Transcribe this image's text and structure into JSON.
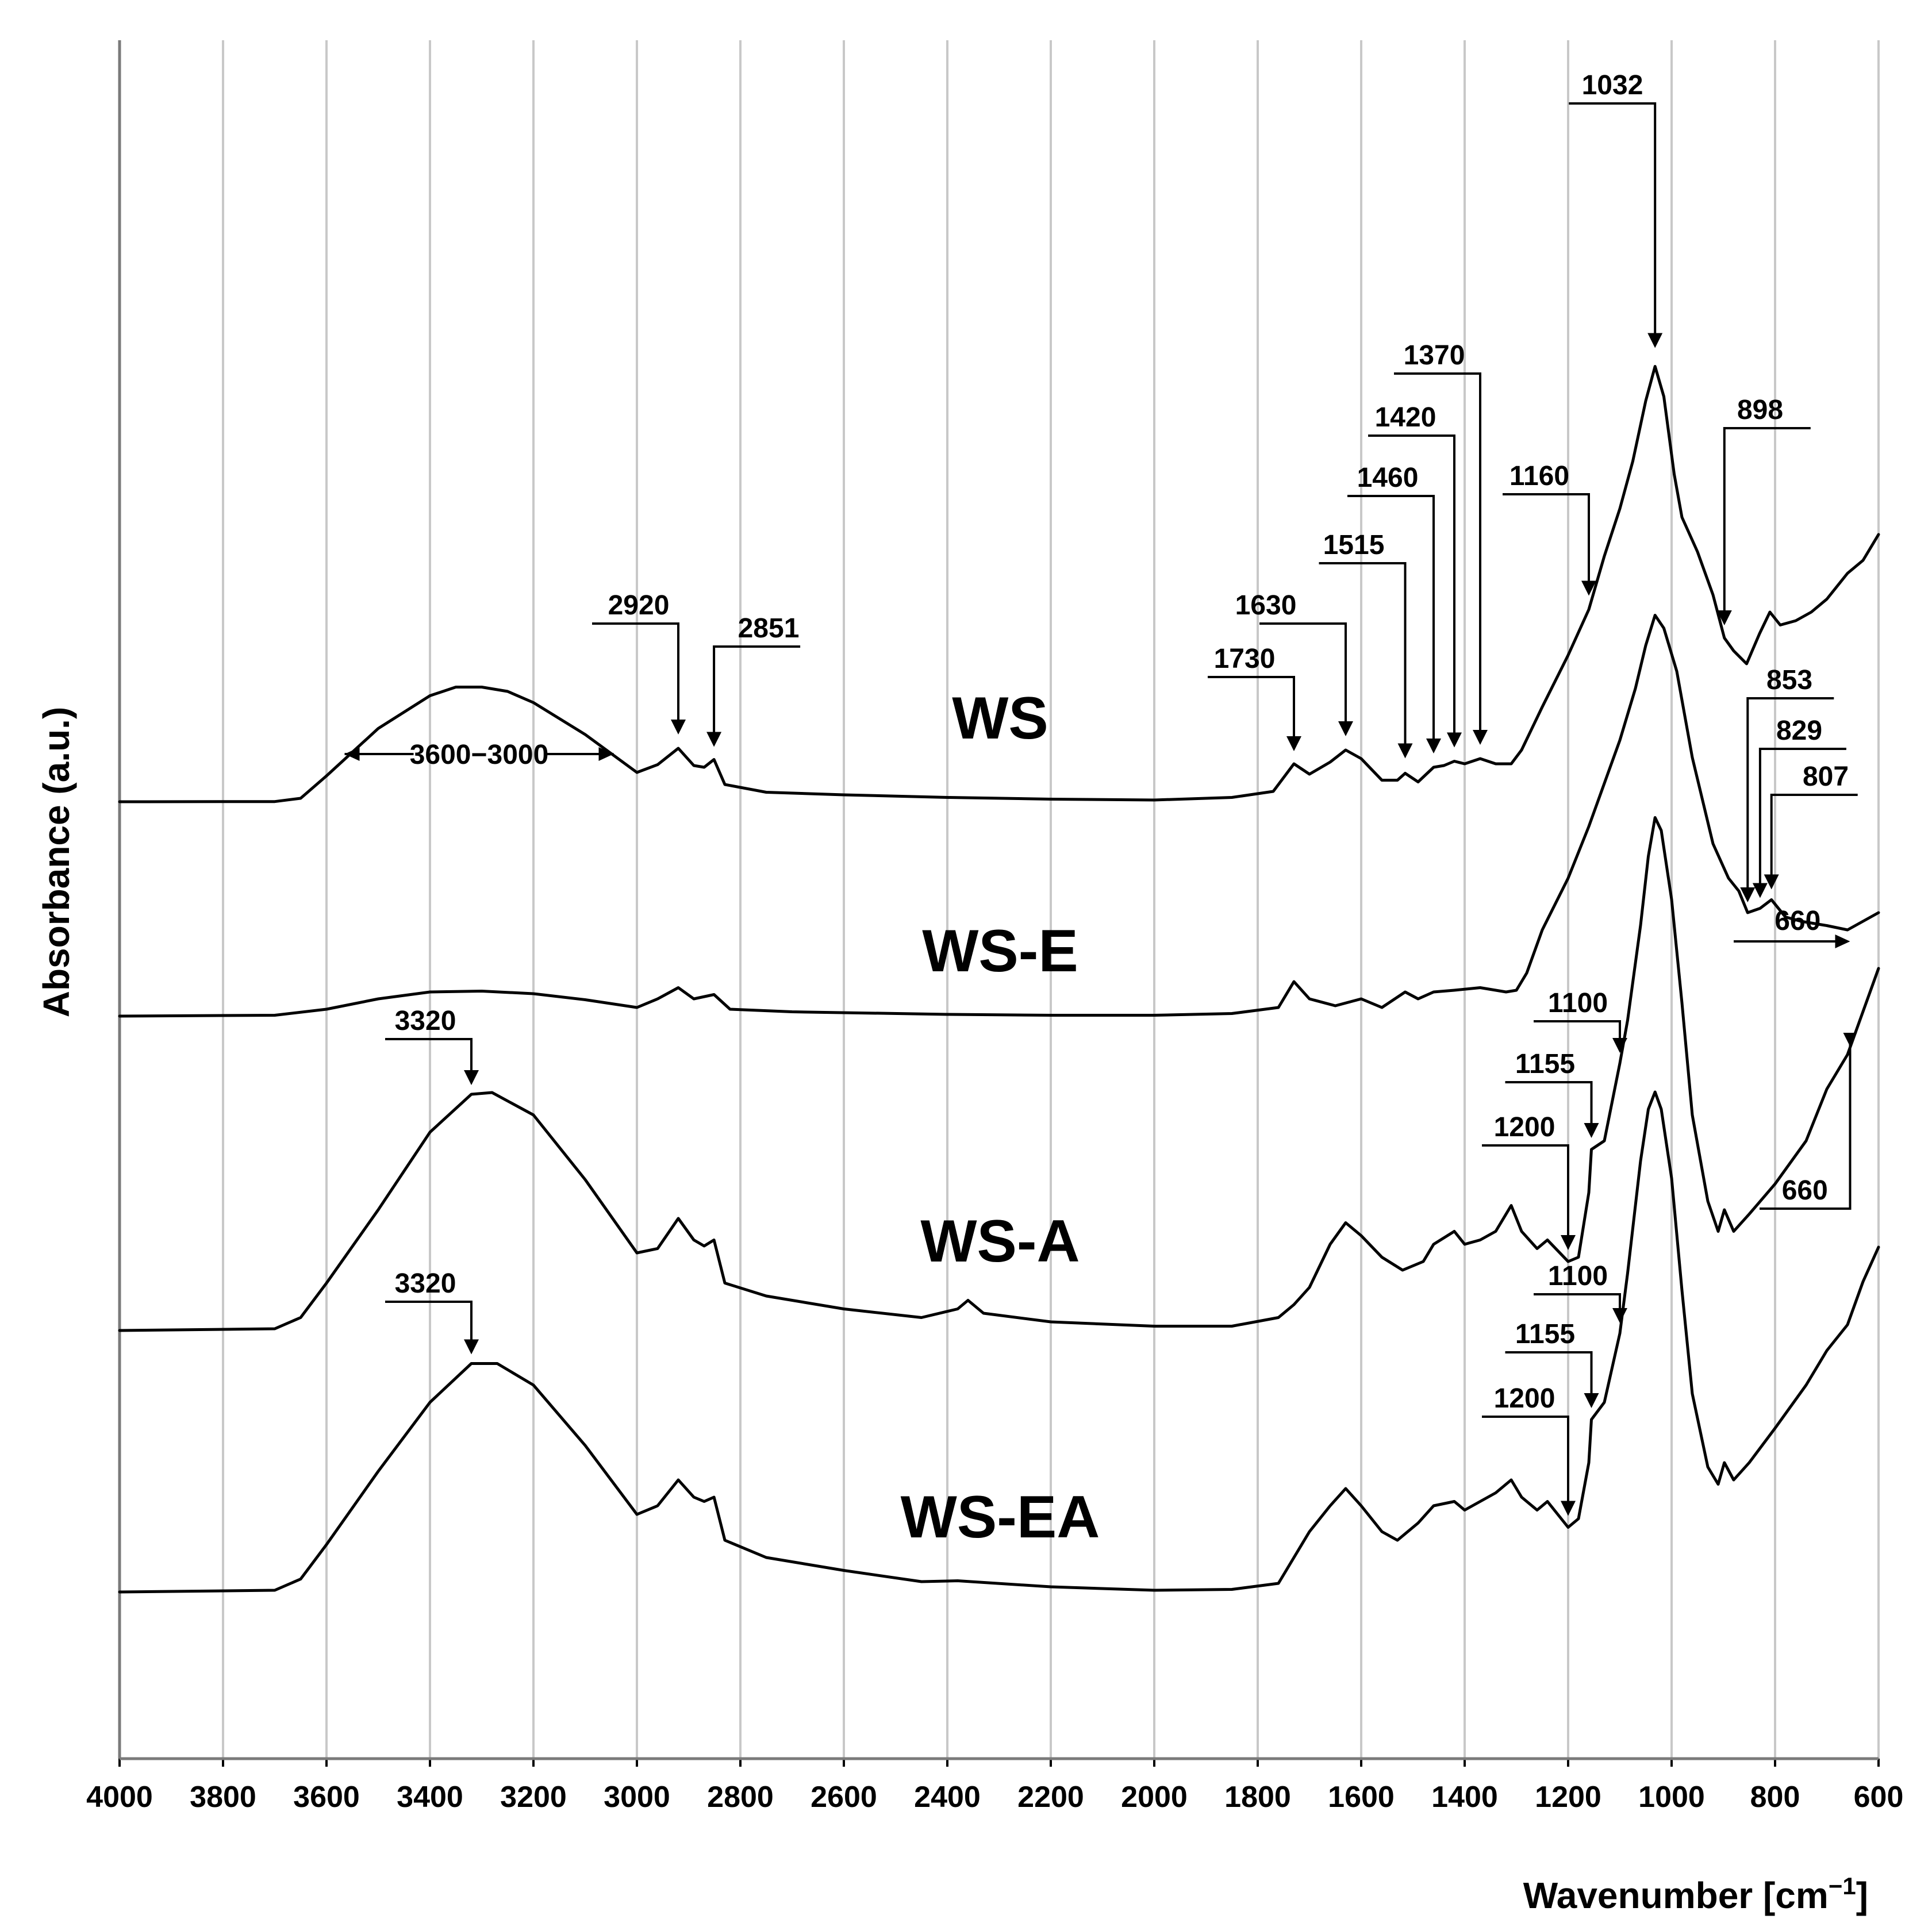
{
  "chart_data": {
    "type": "line",
    "title": "",
    "xlabel": "Wavenumber [cm",
    "xlabel_sup": "−1",
    "xlabel_close": "]",
    "ylabel": "Absorbance (a.u.)",
    "xlim": [
      4000,
      600
    ],
    "x_ticks": [
      4000,
      3800,
      3600,
      3400,
      3200,
      3000,
      2800,
      2600,
      2400,
      2200,
      2000,
      1800,
      1600,
      1400,
      1200,
      1000,
      800,
      600
    ],
    "grid": true,
    "series": [
      {
        "name": "WS",
        "points": [
          [
            4000,
            0.0
          ],
          [
            3700,
            0.002
          ],
          [
            3650,
            0.04
          ],
          [
            3600,
            0.3
          ],
          [
            3500,
            0.85
          ],
          [
            3400,
            1.23
          ],
          [
            3350,
            1.33
          ],
          [
            3300,
            1.33
          ],
          [
            3250,
            1.28
          ],
          [
            3200,
            1.15
          ],
          [
            3100,
            0.78
          ],
          [
            3050,
            0.56
          ],
          [
            3000,
            0.34
          ],
          [
            2960,
            0.43
          ],
          [
            2920,
            0.62
          ],
          [
            2890,
            0.42
          ],
          [
            2870,
            0.4
          ],
          [
            2851,
            0.49
          ],
          [
            2830,
            0.2
          ],
          [
            2750,
            0.11
          ],
          [
            2600,
            0.08
          ],
          [
            2400,
            0.05
          ],
          [
            2200,
            0.03
          ],
          [
            2000,
            0.02
          ],
          [
            1850,
            0.05
          ],
          [
            1770,
            0.12
          ],
          [
            1730,
            0.44
          ],
          [
            1700,
            0.32
          ],
          [
            1660,
            0.46
          ],
          [
            1630,
            0.6
          ],
          [
            1600,
            0.5
          ],
          [
            1560,
            0.25
          ],
          [
            1530,
            0.25
          ],
          [
            1515,
            0.33
          ],
          [
            1490,
            0.23
          ],
          [
            1460,
            0.4
          ],
          [
            1440,
            0.42
          ],
          [
            1420,
            0.47
          ],
          [
            1400,
            0.44
          ],
          [
            1370,
            0.5
          ],
          [
            1340,
            0.44
          ],
          [
            1310,
            0.44
          ],
          [
            1290,
            0.6
          ],
          [
            1250,
            1.1
          ],
          [
            1200,
            1.7
          ],
          [
            1160,
            2.23
          ],
          [
            1130,
            2.85
          ],
          [
            1100,
            3.4
          ],
          [
            1075,
            3.95
          ],
          [
            1050,
            4.65
          ],
          [
            1032,
            5.05
          ],
          [
            1015,
            4.7
          ],
          [
            995,
            3.8
          ],
          [
            980,
            3.3
          ],
          [
            950,
            2.9
          ],
          [
            920,
            2.4
          ],
          [
            898,
            1.9
          ],
          [
            880,
            1.75
          ],
          [
            855,
            1.6
          ],
          [
            830,
            1.95
          ],
          [
            810,
            2.2
          ],
          [
            790,
            2.05
          ],
          [
            760,
            2.1
          ],
          [
            730,
            2.2
          ],
          [
            700,
            2.35
          ],
          [
            660,
            2.65
          ],
          [
            630,
            2.8
          ],
          [
            600,
            3.1
          ]
        ]
      },
      {
        "name": "WS-E",
        "points": [
          [
            4000,
            0.0
          ],
          [
            3700,
            0.01
          ],
          [
            3600,
            0.08
          ],
          [
            3500,
            0.2
          ],
          [
            3400,
            0.28
          ],
          [
            3300,
            0.29
          ],
          [
            3200,
            0.26
          ],
          [
            3100,
            0.19
          ],
          [
            3000,
            0.1
          ],
          [
            2960,
            0.2
          ],
          [
            2920,
            0.33
          ],
          [
            2890,
            0.2
          ],
          [
            2851,
            0.25
          ],
          [
            2820,
            0.08
          ],
          [
            2700,
            0.05
          ],
          [
            2400,
            0.02
          ],
          [
            2200,
            0.01
          ],
          [
            2000,
            0.01
          ],
          [
            1850,
            0.03
          ],
          [
            1760,
            0.1
          ],
          [
            1730,
            0.4
          ],
          [
            1700,
            0.2
          ],
          [
            1650,
            0.12
          ],
          [
            1600,
            0.2
          ],
          [
            1560,
            0.1
          ],
          [
            1515,
            0.28
          ],
          [
            1490,
            0.2
          ],
          [
            1460,
            0.28
          ],
          [
            1420,
            0.3
          ],
          [
            1370,
            0.33
          ],
          [
            1320,
            0.28
          ],
          [
            1300,
            0.3
          ],
          [
            1280,
            0.5
          ],
          [
            1250,
            1.0
          ],
          [
            1200,
            1.6
          ],
          [
            1160,
            2.2
          ],
          [
            1130,
            2.7
          ],
          [
            1100,
            3.2
          ],
          [
            1070,
            3.8
          ],
          [
            1050,
            4.3
          ],
          [
            1032,
            4.65
          ],
          [
            1015,
            4.5
          ],
          [
            990,
            4.0
          ],
          [
            960,
            3.0
          ],
          [
            920,
            2.0
          ],
          [
            890,
            1.6
          ],
          [
            870,
            1.45
          ],
          [
            853,
            1.2
          ],
          [
            829,
            1.25
          ],
          [
            807,
            1.35
          ],
          [
            780,
            1.15
          ],
          [
            750,
            1.1
          ],
          [
            700,
            1.05
          ],
          [
            660,
            1.0
          ],
          [
            600,
            1.2
          ]
        ]
      },
      {
        "name": "WS-A",
        "points": [
          [
            4000,
            0.0
          ],
          [
            3700,
            0.02
          ],
          [
            3650,
            0.15
          ],
          [
            3600,
            0.55
          ],
          [
            3500,
            1.4
          ],
          [
            3400,
            2.3
          ],
          [
            3320,
            2.74
          ],
          [
            3280,
            2.76
          ],
          [
            3200,
            2.5
          ],
          [
            3100,
            1.75
          ],
          [
            3000,
            0.9
          ],
          [
            2960,
            0.95
          ],
          [
            2920,
            1.3
          ],
          [
            2890,
            1.05
          ],
          [
            2870,
            0.98
          ],
          [
            2851,
            1.05
          ],
          [
            2830,
            0.55
          ],
          [
            2750,
            0.4
          ],
          [
            2600,
            0.25
          ],
          [
            2450,
            0.15
          ],
          [
            2380,
            0.25
          ],
          [
            2360,
            0.35
          ],
          [
            2330,
            0.2
          ],
          [
            2200,
            0.1
          ],
          [
            2000,
            0.05
          ],
          [
            1850,
            0.05
          ],
          [
            1760,
            0.15
          ],
          [
            1730,
            0.3
          ],
          [
            1700,
            0.5
          ],
          [
            1660,
            1.0
          ],
          [
            1630,
            1.25
          ],
          [
            1600,
            1.1
          ],
          [
            1560,
            0.85
          ],
          [
            1520,
            0.7
          ],
          [
            1480,
            0.8
          ],
          [
            1460,
            1.0
          ],
          [
            1420,
            1.15
          ],
          [
            1400,
            1.0
          ],
          [
            1370,
            1.05
          ],
          [
            1340,
            1.15
          ],
          [
            1310,
            1.45
          ],
          [
            1290,
            1.15
          ],
          [
            1260,
            0.95
          ],
          [
            1240,
            1.05
          ],
          [
            1200,
            0.8
          ],
          [
            1180,
            0.85
          ],
          [
            1160,
            1.6
          ],
          [
            1155,
            2.1
          ],
          [
            1130,
            2.2
          ],
          [
            1100,
            3.1
          ],
          [
            1085,
            3.6
          ],
          [
            1060,
            4.7
          ],
          [
            1045,
            5.5
          ],
          [
            1032,
            5.95
          ],
          [
            1020,
            5.8
          ],
          [
            1000,
            5.0
          ],
          [
            980,
            3.8
          ],
          [
            960,
            2.5
          ],
          [
            930,
            1.5
          ],
          [
            910,
            1.15
          ],
          [
            898,
            1.4
          ],
          [
            880,
            1.15
          ],
          [
            850,
            1.35
          ],
          [
            800,
            1.7
          ],
          [
            740,
            2.2
          ],
          [
            700,
            2.8
          ],
          [
            660,
            3.2
          ],
          [
            630,
            3.7
          ],
          [
            600,
            4.2
          ]
        ]
      },
      {
        "name": "WS-EA",
        "points": [
          [
            4000,
            0.0
          ],
          [
            3700,
            0.02
          ],
          [
            3650,
            0.15
          ],
          [
            3600,
            0.55
          ],
          [
            3500,
            1.4
          ],
          [
            3400,
            2.2
          ],
          [
            3320,
            2.65
          ],
          [
            3270,
            2.65
          ],
          [
            3200,
            2.4
          ],
          [
            3100,
            1.7
          ],
          [
            3000,
            0.9
          ],
          [
            2960,
            1.0
          ],
          [
            2920,
            1.3
          ],
          [
            2890,
            1.1
          ],
          [
            2870,
            1.05
          ],
          [
            2851,
            1.1
          ],
          [
            2830,
            0.6
          ],
          [
            2750,
            0.4
          ],
          [
            2600,
            0.25
          ],
          [
            2450,
            0.12
          ],
          [
            2380,
            0.13
          ],
          [
            2200,
            0.06
          ],
          [
            2000,
            0.02
          ],
          [
            1850,
            0.03
          ],
          [
            1760,
            0.1
          ],
          [
            1730,
            0.4
          ],
          [
            1700,
            0.7
          ],
          [
            1660,
            1.0
          ],
          [
            1630,
            1.2
          ],
          [
            1600,
            1.0
          ],
          [
            1560,
            0.7
          ],
          [
            1530,
            0.6
          ],
          [
            1490,
            0.8
          ],
          [
            1460,
            1.0
          ],
          [
            1420,
            1.05
          ],
          [
            1400,
            0.95
          ],
          [
            1370,
            1.05
          ],
          [
            1340,
            1.15
          ],
          [
            1310,
            1.3
          ],
          [
            1290,
            1.1
          ],
          [
            1260,
            0.95
          ],
          [
            1240,
            1.05
          ],
          [
            1200,
            0.75
          ],
          [
            1180,
            0.85
          ],
          [
            1160,
            1.5
          ],
          [
            1155,
            2.0
          ],
          [
            1130,
            2.2
          ],
          [
            1100,
            3.0
          ],
          [
            1085,
            3.7
          ],
          [
            1060,
            5.0
          ],
          [
            1045,
            5.6
          ],
          [
            1032,
            5.8
          ],
          [
            1020,
            5.6
          ],
          [
            1000,
            4.8
          ],
          [
            980,
            3.5
          ],
          [
            960,
            2.3
          ],
          [
            930,
            1.45
          ],
          [
            910,
            1.25
          ],
          [
            898,
            1.5
          ],
          [
            880,
            1.3
          ],
          [
            850,
            1.5
          ],
          [
            800,
            1.9
          ],
          [
            740,
            2.4
          ],
          [
            700,
            2.8
          ],
          [
            660,
            3.1
          ],
          [
            630,
            3.6
          ],
          [
            600,
            4.0
          ]
        ]
      }
    ],
    "annotations": {
      "WS": [
        "1032",
        "1370",
        "1420",
        "898",
        "1460",
        "1160",
        "1515",
        "2920",
        "2851",
        "1630",
        "1730",
        "3600−3000"
      ],
      "WS-E": [
        "853",
        "829",
        "807",
        "660"
      ],
      "WS-A": [
        "1100",
        "3320",
        "1155",
        "1200",
        "660"
      ],
      "WS-EA": [
        "3320",
        "1100",
        "1155",
        "1200"
      ]
    }
  }
}
